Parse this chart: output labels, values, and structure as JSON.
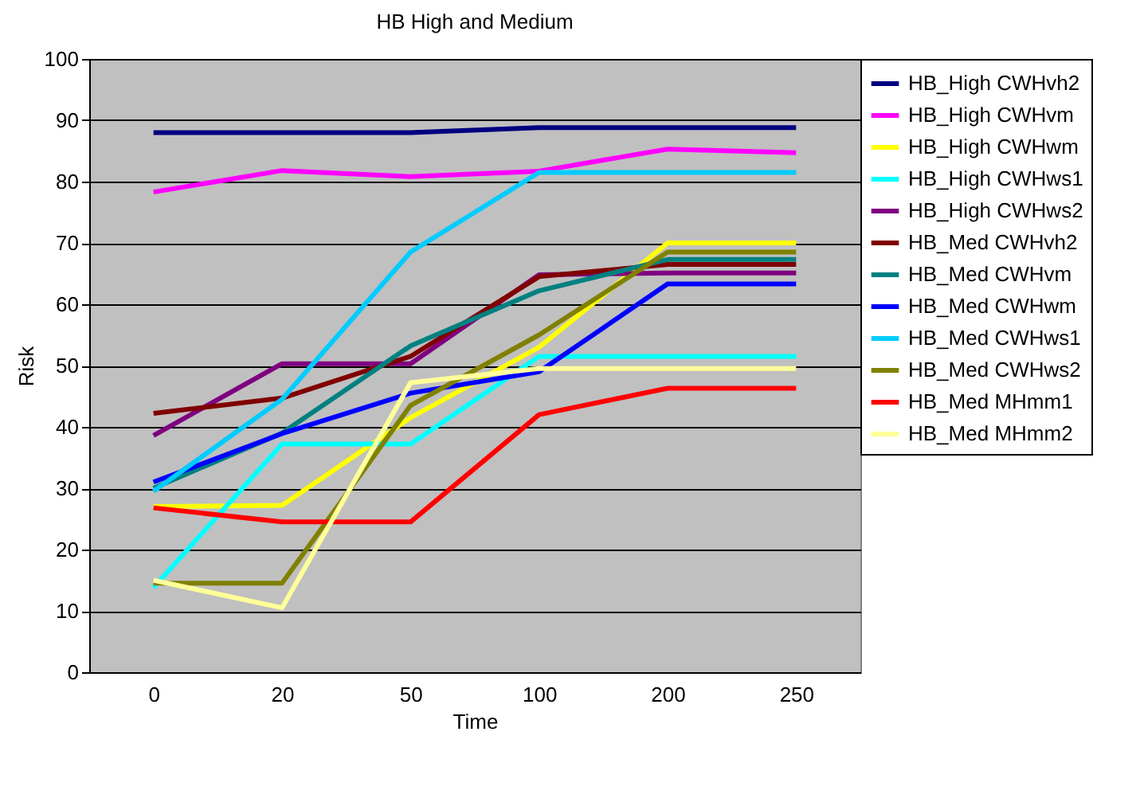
{
  "chart_data": {
    "type": "line",
    "title": "HB High and Medium",
    "xlabel": "Time",
    "ylabel": "Risk",
    "categories": [
      "0",
      "20",
      "50",
      "100",
      "200",
      "250"
    ],
    "ylim": [
      0,
      100
    ],
    "yticks": [
      0,
      10,
      20,
      30,
      40,
      50,
      60,
      70,
      80,
      90,
      100
    ],
    "grid": "y",
    "legend": "top right",
    "marker": "none",
    "series": [
      {
        "name": "HB_High CWHvh2",
        "color": "#000080",
        "values": [
          88,
          88,
          88,
          88.8,
          88.8,
          88.8
        ]
      },
      {
        "name": "HB_High CWHvm",
        "color": "#ff00ff",
        "values": [
          78.3,
          81.8,
          80.8,
          81.7,
          85.3,
          84.7
        ]
      },
      {
        "name": "HB_High CWHwm",
        "color": "#ffff00",
        "values": [
          27,
          27.2,
          41.5,
          53,
          70,
          70
        ]
      },
      {
        "name": "HB_High CWHws1",
        "color": "#00ffff",
        "values": [
          13.8,
          37.2,
          37.2,
          51.5,
          51.5,
          51.5
        ]
      },
      {
        "name": "HB_High CWHws2",
        "color": "#800080",
        "values": [
          38.6,
          50.3,
          50.3,
          64.8,
          65.1,
          65.1
        ]
      },
      {
        "name": "HB_Med CWHvh2",
        "color": "#800000",
        "values": [
          42.2,
          44.7,
          51.5,
          64.5,
          66.5,
          66.5
        ]
      },
      {
        "name": "HB_Med CWHvm",
        "color": "#008080",
        "values": [
          30,
          39,
          53.2,
          62.2,
          67.3,
          67.3
        ]
      },
      {
        "name": "HB_Med CWHwm",
        "color": "#0000ff",
        "values": [
          31,
          38.9,
          45.5,
          49,
          63.3,
          63.3
        ]
      },
      {
        "name": "HB_Med CWHws1",
        "color": "#00ccff",
        "values": [
          29.5,
          44.5,
          68.5,
          81.5,
          81.5,
          81.5
        ]
      },
      {
        "name": "HB_Med CWHws2",
        "color": "#808000",
        "values": [
          14.5,
          14.5,
          43.5,
          55,
          68.5,
          68.5
        ]
      },
      {
        "name": "HB_Med MHmm1",
        "color": "#ff0000",
        "values": [
          26.8,
          24.5,
          24.5,
          42,
          46.3,
          46.3
        ]
      },
      {
        "name": "HB_Med MHmm2",
        "color": "#ffff99",
        "values": [
          15,
          10.5,
          47.2,
          49.5,
          49.5,
          49.5
        ]
      }
    ]
  }
}
